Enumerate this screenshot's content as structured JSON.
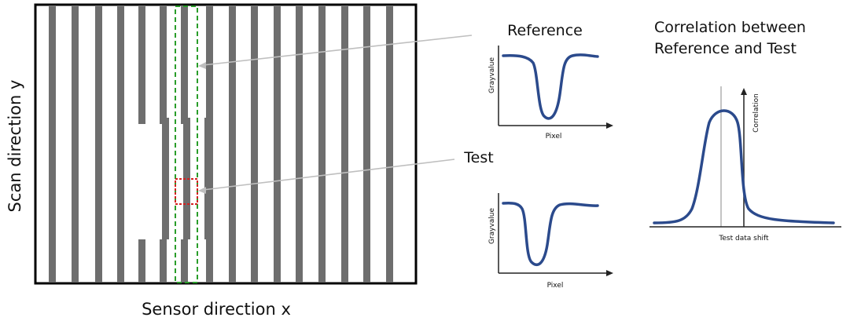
{
  "scan_panel": {
    "y_axis_label": "Scan direction y",
    "x_axis_label": "Sensor direction x"
  },
  "reference": {
    "title": "Reference",
    "x_label": "Pixel",
    "y_label": "Grayvalue"
  },
  "test": {
    "title": "Test",
    "x_label": "Pixel",
    "y_label": "Grayvalue"
  },
  "correlation": {
    "title_line1": "Correlation between",
    "title_line2": "Reference and Test",
    "x_label": "Test data shift",
    "y_label": "Correlation"
  },
  "colors": {
    "stripe": "#6e6e6e",
    "curve": "#2b4a8c",
    "reference_box": "#2a9d2a",
    "test_box": "#d42020",
    "leader": "#bfbfbf"
  }
}
